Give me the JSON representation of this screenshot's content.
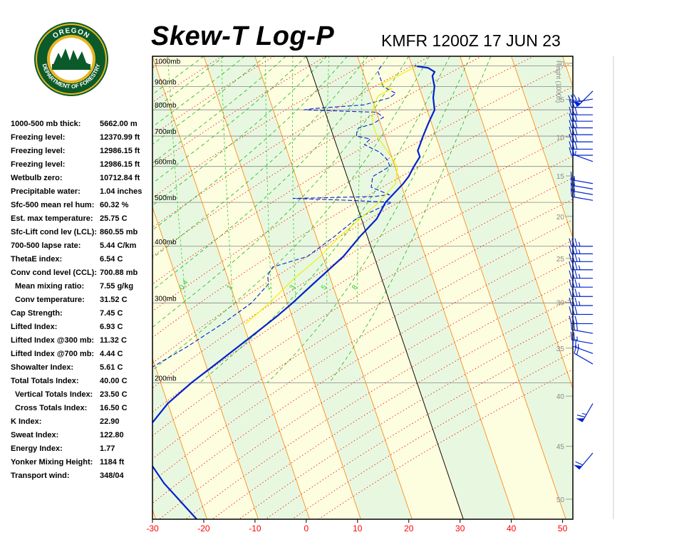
{
  "title": "Skew-T Log-P",
  "station_time": "KMFR 1200Z 17 JUN 23",
  "logo": {
    "name": "oregon-department-of-forestry-logo",
    "top_text": "OREGON",
    "bottom_text": "DEPARTMENT OF FORESTRY",
    "colors": {
      "ring": "#0b5a2a",
      "gold": "#e8b421",
      "trees": "#0b5a2a"
    }
  },
  "indices": [
    {
      "label": "1000-500 mb thick:",
      "value": "5662.00 m"
    },
    {
      "label": "Freezing level:",
      "value": "12370.99 ft"
    },
    {
      "label": "Freezing level:",
      "value": "12986.15 ft"
    },
    {
      "label": "Freezing level:",
      "value": "12986.15 ft"
    },
    {
      "label": "Wetbulb zero:",
      "value": "10712.84 ft"
    },
    {
      "label": "Precipitable water:",
      "value": "1.04 inches"
    },
    {
      "label": "Sfc-500 mean rel hum:",
      "value": "60.32 %"
    },
    {
      "label": "Est. max temperature:",
      "value": "25.75 C"
    },
    {
      "label": "Sfc-Lift cond lev (LCL):",
      "value": "860.55 mb"
    },
    {
      "label": "700-500 lapse rate:",
      "value": "5.44 C/km"
    },
    {
      "label": "ThetaE index:",
      "value": "6.54 C"
    },
    {
      "label": "Conv cond level (CCL):",
      "value": "700.88 mb"
    },
    {
      "label": "Mean mixing ratio:",
      "value": "7.55 g/kg",
      "indent": true
    },
    {
      "label": "Conv temperature:",
      "value": "31.52 C",
      "indent": true
    },
    {
      "label": "Cap Strength:",
      "value": "7.45 C"
    },
    {
      "label": "Lifted Index:",
      "value": "6.93 C"
    },
    {
      "label": "Lifted Index @300 mb:",
      "value": "11.32 C"
    },
    {
      "label": "Lifted Index @700 mb:",
      "value": "4.44 C"
    },
    {
      "label": "Showalter Index:",
      "value": "5.61 C"
    },
    {
      "label": "Total Totals Index:",
      "value": "40.00 C"
    },
    {
      "label": "Vertical Totals Index:",
      "value": "23.50 C",
      "indent": true
    },
    {
      "label": "Cross Totals Index:",
      "value": "16.50 C",
      "indent": true
    },
    {
      "label": "K Index:",
      "value": "22.90"
    },
    {
      "label": "Sweat Index:",
      "value": "122.80"
    },
    {
      "label": "Energy Index:",
      "value": "1.77"
    },
    {
      "label": "Yonker Mixing Height:",
      "value": "1184 ft"
    },
    {
      "label": "Transport wind:",
      "value": "348/04"
    }
  ],
  "chart_data": {
    "type": "line",
    "subtype": "skew-t log-p",
    "x_ticks": [
      -30,
      -20,
      -10,
      0,
      10,
      20,
      30,
      40,
      50
    ],
    "xlim": [
      -30,
      52
    ],
    "pressure_levels": [
      "1000mb",
      "900mb",
      "800mb",
      "700mb",
      "600mb",
      "500mb",
      "400mb",
      "300mb",
      "200mb"
    ],
    "pressure_values": [
      1000,
      900,
      800,
      700,
      600,
      500,
      400,
      300,
      200
    ],
    "ylim_mb": [
      1050,
      100
    ],
    "height_label": "Height (1000ft)",
    "height_ticks": [
      0,
      5,
      10,
      15,
      20,
      25,
      30,
      35,
      40,
      45,
      50
    ],
    "mixing_ratio_labels": [
      "0.4",
      "1",
      "2",
      "3",
      "5",
      "8"
    ],
    "mixing_ratio_values": [
      0.4,
      1,
      2,
      3,
      5,
      8
    ],
    "series": [
      {
        "role": "temperature",
        "color": "#0022cc",
        "points": [
          [
            1000,
            20.5
          ],
          [
            990,
            23.0
          ],
          [
            970,
            24.0
          ],
          [
            950,
            23.3
          ],
          [
            900,
            23.0
          ],
          [
            850,
            22.0
          ],
          [
            800,
            21.5
          ],
          [
            750,
            19.5
          ],
          [
            700,
            17.5
          ],
          [
            650,
            15.5
          ],
          [
            630,
            15.5
          ],
          [
            600,
            13.7
          ],
          [
            570,
            12.0
          ],
          [
            550,
            10.5
          ],
          [
            500,
            5.8
          ],
          [
            460,
            3.0
          ],
          [
            420,
            -1.5
          ],
          [
            380,
            -6.0
          ],
          [
            330,
            -13.8
          ],
          [
            300,
            -19.0
          ],
          [
            280,
            -23.0
          ],
          [
            250,
            -30.0
          ],
          [
            220,
            -38.0
          ],
          [
            200,
            -44.0
          ],
          [
            180,
            -50.0
          ],
          [
            150,
            -58.0
          ],
          [
            140,
            -58.0
          ],
          [
            120,
            -56.0
          ],
          [
            100,
            -52.0
          ]
        ]
      },
      {
        "role": "dewpoint",
        "color": "#0022cc",
        "dashed": true,
        "points": [
          [
            1000,
            14.0
          ],
          [
            975,
            13.0
          ],
          [
            940,
            13.0
          ],
          [
            900,
            13.0
          ],
          [
            870,
            15.0
          ],
          [
            850,
            13.5
          ],
          [
            820,
            8.0
          ],
          [
            805,
            -2.0
          ],
          [
            800,
            -4.0
          ],
          [
            790,
            10.0
          ],
          [
            770,
            11.0
          ],
          [
            745,
            8.5
          ],
          [
            730,
            5.5
          ],
          [
            720,
            5.0
          ],
          [
            700,
            4.5
          ],
          [
            690,
            7.0
          ],
          [
            670,
            5.5
          ],
          [
            645,
            8.0
          ],
          [
            620,
            9.0
          ],
          [
            600,
            9.0
          ],
          [
            570,
            5.0
          ],
          [
            540,
            4.0
          ],
          [
            520,
            7.0
          ],
          [
            515,
            4.0
          ],
          [
            510,
            -12.0
          ],
          [
            505,
            -1.0
          ],
          [
            500,
            7.0
          ],
          [
            490,
            5.0
          ],
          [
            460,
            -1.0
          ],
          [
            420,
            -6.5
          ],
          [
            380,
            -13.0
          ],
          [
            360,
            -20.5
          ],
          [
            345,
            -22.0
          ],
          [
            330,
            -22.5
          ],
          [
            300,
            -27.0
          ],
          [
            270,
            -34.0
          ],
          [
            240,
            -42.5
          ],
          [
            210,
            -53.0
          ],
          [
            200,
            -54.0
          ],
          [
            180,
            -57.0
          ],
          [
            150,
            -67.0
          ],
          [
            120,
            -72.0
          ],
          [
            100,
            -76.0
          ]
        ]
      },
      {
        "role": "parcel",
        "color": "#eeee00",
        "points": [
          [
            1000,
            21.0
          ],
          [
            950,
            16.5
          ],
          [
            910,
            12.5
          ],
          [
            890,
            14.5
          ],
          [
            860,
            11.5
          ],
          [
            820,
            10.0
          ],
          [
            780,
            9.0
          ],
          [
            740,
            8.5
          ],
          [
            700,
            8.5
          ],
          [
            650,
            9.5
          ],
          [
            600,
            10.5
          ],
          [
            550,
            9.0
          ],
          [
            500,
            4.5
          ],
          [
            470,
            1.0
          ],
          [
            420,
            -5.5
          ],
          [
            380,
            -10.5
          ],
          [
            340,
            -17.0
          ],
          [
            300,
            -23.5
          ],
          [
            270,
            -29.5
          ]
        ]
      }
    ],
    "wind_barbs": [
      {
        "mb": 880,
        "dir": 225,
        "spd": 55
      },
      {
        "mb": 845,
        "dir": 260,
        "spd": 35
      },
      {
        "mb": 810,
        "dir": 270,
        "spd": 30
      },
      {
        "mb": 780,
        "dir": 270,
        "spd": 30
      },
      {
        "mb": 755,
        "dir": 270,
        "spd": 30
      },
      {
        "mb": 730,
        "dir": 270,
        "spd": 30
      },
      {
        "mb": 705,
        "dir": 270,
        "spd": 30
      },
      {
        "mb": 680,
        "dir": 270,
        "spd": 30
      },
      {
        "mb": 655,
        "dir": 270,
        "spd": 30
      },
      {
        "mb": 635,
        "dir": 270,
        "spd": 20
      },
      {
        "mb": 615,
        "dir": 290,
        "spd": 15
      },
      {
        "mb": 550,
        "dir": 280,
        "spd": 15
      },
      {
        "mb": 535,
        "dir": 280,
        "spd": 20
      },
      {
        "mb": 520,
        "dir": 280,
        "spd": 20
      },
      {
        "mb": 505,
        "dir": 280,
        "spd": 20
      },
      {
        "mb": 400,
        "dir": 270,
        "spd": 35
      },
      {
        "mb": 385,
        "dir": 270,
        "spd": 35
      },
      {
        "mb": 370,
        "dir": 270,
        "spd": 35
      },
      {
        "mb": 355,
        "dir": 270,
        "spd": 35
      },
      {
        "mb": 340,
        "dir": 270,
        "spd": 35
      },
      {
        "mb": 325,
        "dir": 270,
        "spd": 35
      },
      {
        "mb": 310,
        "dir": 270,
        "spd": 35
      },
      {
        "mb": 296,
        "dir": 270,
        "spd": 35
      },
      {
        "mb": 283,
        "dir": 270,
        "spd": 30
      },
      {
        "mb": 270,
        "dir": 270,
        "spd": 30
      },
      {
        "mb": 257,
        "dir": 280,
        "spd": 30
      },
      {
        "mb": 244,
        "dir": 280,
        "spd": 25
      },
      {
        "mb": 232,
        "dir": 290,
        "spd": 25
      },
      {
        "mb": 220,
        "dir": 300,
        "spd": 20
      },
      {
        "mb": 180,
        "dir": 210,
        "spd": 65
      },
      {
        "mb": 140,
        "dir": 220,
        "spd": 60
      }
    ],
    "colors": {
      "isotherm": "#ff8000",
      "dry_adiabat": "#ff0000",
      "moist_adiabat": "#00aa00",
      "mixing_ratio": "#33cc33",
      "isobar": "#888888",
      "zero_isotherm_line": "#000000",
      "band_green": "#e8f8e0",
      "band_yellow": "#fdfde0",
      "trace": "#0022cc",
      "parcel": "#eeee00",
      "axis_tick_labels": "#ff0000"
    }
  }
}
